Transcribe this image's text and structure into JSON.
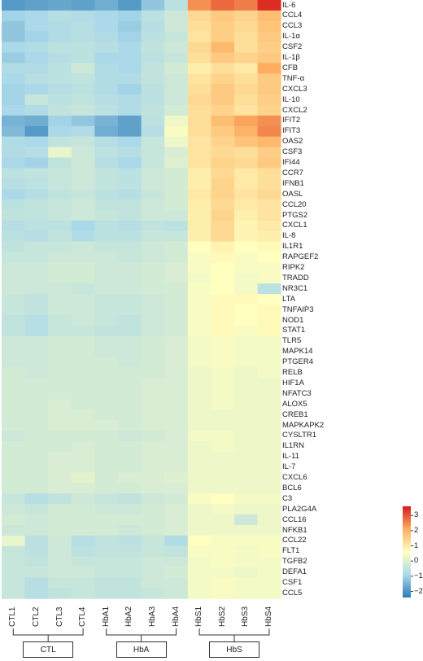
{
  "chart_data": {
    "type": "heatmap",
    "title": "",
    "samples": [
      "CTL1",
      "CTL2",
      "CTL3",
      "CTL4",
      "HbA1",
      "HbA2",
      "HbA3",
      "HbA4",
      "HbS1",
      "HbS2",
      "HbS3",
      "HbS4"
    ],
    "groups": [
      {
        "label": "CTL",
        "members": [
          "CTL1",
          "CTL2",
          "CTL3",
          "CTL4"
        ]
      },
      {
        "label": "HbA",
        "members": [
          "HbA1",
          "HbA2",
          "HbA3",
          "HbA4"
        ]
      },
      {
        "label": "HbS",
        "members": [
          "HbS1",
          "HbS2",
          "HbS3",
          "HbS4"
        ]
      }
    ],
    "genes": [
      "IL-6",
      "CCL4",
      "CCL3",
      "IL-1α",
      "CSF2",
      "IL-1β",
      "CFB",
      "TNF-α",
      "CXCL3",
      "IL-10",
      "CXCL2",
      "IFIT2",
      "IFIT3",
      "OAS2",
      "CSF3",
      "IFI44",
      "CCR7",
      "IFNB1",
      "OASL",
      "CCL20",
      "PTGS2",
      "CXCL1",
      "IL-8",
      "IL1R1",
      "RAPGEF2",
      "RIPK2",
      "TRADD",
      "NR3C1",
      "LTA",
      "TNFAIP3",
      "NOD1",
      "STAT1",
      "TLR5",
      "MAPK14",
      "PTGER4",
      "RELB",
      "HIF1A",
      "NFATC3",
      "ALOX5",
      "CREB1",
      "MAPKAPK2",
      "CYSLTR1",
      "IL1RN",
      "IL-11",
      "IL-7",
      "CXCL6",
      "BCL6",
      "C3",
      "PLA2G4A",
      "CCL16",
      "NFKB1",
      "CCL22",
      "FLT1",
      "TGFB2",
      "DEFA1",
      "CSF1",
      "CCL5"
    ],
    "values": [
      [
        -1.9,
        -1.8,
        -1.7,
        -1.8,
        -1.6,
        -1.9,
        -1.2,
        -0.6,
        2.4,
        2.8,
        2.6,
        3.4
      ],
      [
        -1.0,
        -0.9,
        -0.7,
        -0.8,
        -0.9,
        -1.0,
        -0.6,
        -0.3,
        1.3,
        1.6,
        1.4,
        1.8
      ],
      [
        -1.2,
        -0.9,
        -0.8,
        -0.7,
        -0.9,
        -1.1,
        -0.7,
        -0.3,
        1.2,
        1.5,
        1.3,
        1.7
      ],
      [
        -1.2,
        -1.0,
        -0.8,
        -0.7,
        -0.8,
        -1.0,
        -0.6,
        -0.4,
        1.1,
        1.5,
        1.2,
        1.6
      ],
      [
        -0.9,
        -0.8,
        -0.6,
        -0.6,
        -0.7,
        -0.9,
        -0.5,
        -0.3,
        1.3,
        1.9,
        1.2,
        1.5
      ],
      [
        -1.1,
        -0.9,
        -0.7,
        -0.6,
        -0.9,
        -0.9,
        -0.6,
        -0.4,
        1.2,
        1.6,
        1.4,
        1.6
      ],
      [
        -0.8,
        -0.8,
        -0.6,
        -0.3,
        -0.8,
        -0.9,
        -0.5,
        -0.2,
        0.9,
        1.2,
        1.0,
        2.1
      ],
      [
        -0.9,
        -0.7,
        -0.6,
        -0.5,
        -0.8,
        -0.8,
        -0.5,
        -0.3,
        1.1,
        1.4,
        1.2,
        1.6
      ],
      [
        -1.0,
        -0.9,
        -0.7,
        -0.6,
        -0.8,
        -1.0,
        -0.6,
        -0.3,
        1.2,
        1.6,
        1.3,
        1.6
      ],
      [
        -1.0,
        -0.4,
        -0.6,
        -0.5,
        -0.7,
        -0.8,
        -0.6,
        -0.3,
        1.3,
        1.6,
        1.2,
        1.5
      ],
      [
        -0.9,
        -0.8,
        -0.5,
        -0.4,
        -0.6,
        -0.8,
        -0.5,
        -0.2,
        1.2,
        1.4,
        1.1,
        1.4
      ],
      [
        -1.5,
        -1.6,
        -1.0,
        -1.2,
        -1.5,
        -1.8,
        -0.6,
        0.3,
        1.2,
        1.8,
        2.2,
        2.4
      ],
      [
        -1.4,
        -1.9,
        -0.9,
        -0.8,
        -1.6,
        -1.8,
        -0.7,
        0.5,
        1.2,
        1.6,
        2.0,
        2.5
      ],
      [
        -0.8,
        -0.9,
        -0.5,
        -0.4,
        -0.7,
        -0.9,
        -0.4,
        0.3,
        1.1,
        1.4,
        1.7,
        1.9
      ],
      [
        -0.8,
        -0.7,
        0.2,
        -0.3,
        -0.6,
        -0.7,
        -0.4,
        -0.1,
        1.1,
        1.3,
        1.2,
        1.5
      ],
      [
        -0.9,
        -1.0,
        -0.5,
        -0.3,
        -0.7,
        -0.9,
        -0.4,
        0.0,
        1.1,
        1.4,
        1.3,
        1.6
      ],
      [
        -0.6,
        -0.5,
        -0.4,
        -0.3,
        -0.5,
        -0.6,
        -0.3,
        -0.2,
        0.9,
        1.3,
        1.0,
        1.2
      ],
      [
        -0.7,
        -0.6,
        -0.4,
        -0.3,
        -0.5,
        -0.6,
        -0.3,
        -0.2,
        0.9,
        1.4,
        1.0,
        1.2
      ],
      [
        -0.9,
        -0.7,
        -0.5,
        -0.4,
        -0.6,
        -0.7,
        -0.4,
        -0.2,
        1.0,
        1.4,
        1.1,
        1.3
      ],
      [
        -0.6,
        -0.5,
        -0.4,
        -0.3,
        -0.5,
        -0.5,
        -0.3,
        -0.2,
        0.9,
        1.3,
        1.0,
        1.1
      ],
      [
        -0.5,
        -0.5,
        -0.4,
        -0.3,
        -0.4,
        -0.5,
        -0.3,
        -0.3,
        0.9,
        1.4,
        0.9,
        1.1
      ],
      [
        -0.7,
        -0.6,
        -0.6,
        -0.9,
        -0.6,
        -0.7,
        -0.5,
        -0.6,
        0.9,
        1.3,
        0.8,
        1.0
      ],
      [
        -0.6,
        -0.7,
        -0.5,
        -0.8,
        -0.6,
        -0.6,
        -0.4,
        -0.4,
        0.9,
        1.3,
        0.8,
        0.9
      ],
      [
        -0.5,
        -0.4,
        -0.4,
        -0.3,
        -0.4,
        -0.4,
        -0.3,
        -0.2,
        0.6,
        0.8,
        0.6,
        0.7
      ],
      [
        -0.4,
        -0.4,
        -0.3,
        -0.3,
        -0.3,
        -0.4,
        -0.3,
        -0.2,
        0.5,
        0.7,
        0.5,
        0.6
      ],
      [
        -0.3,
        -0.3,
        -0.2,
        -0.2,
        -0.3,
        -0.3,
        -0.2,
        -0.1,
        0.5,
        0.6,
        0.5,
        0.5
      ],
      [
        -0.3,
        -0.3,
        -0.2,
        -0.2,
        -0.3,
        -0.3,
        -0.2,
        -0.1,
        0.4,
        0.6,
        0.4,
        0.5
      ],
      [
        -0.3,
        -0.3,
        -0.3,
        -0.4,
        -0.3,
        -0.3,
        -0.2,
        -0.2,
        0.5,
        0.6,
        0.4,
        -0.6
      ],
      [
        -0.4,
        -0.5,
        -0.3,
        -0.3,
        -0.4,
        -0.4,
        -0.3,
        -0.2,
        0.5,
        0.7,
        0.7,
        0.6
      ],
      [
        -0.4,
        -0.5,
        -0.3,
        -0.3,
        -0.4,
        -0.4,
        -0.3,
        -0.2,
        0.5,
        0.7,
        0.6,
        0.7
      ],
      [
        -0.5,
        -0.7,
        -0.4,
        -0.3,
        -0.4,
        -0.5,
        -0.3,
        -0.2,
        0.5,
        0.7,
        0.6,
        0.7
      ],
      [
        -0.5,
        -0.7,
        -0.4,
        -0.4,
        -0.5,
        -0.5,
        -0.3,
        -0.2,
        0.5,
        0.7,
        0.5,
        0.7
      ],
      [
        -0.3,
        -0.3,
        -0.2,
        -0.2,
        -0.3,
        -0.3,
        -0.2,
        -0.1,
        0.4,
        0.5,
        0.4,
        0.4
      ],
      [
        -0.3,
        -0.3,
        -0.2,
        -0.2,
        -0.3,
        -0.3,
        -0.2,
        -0.1,
        0.4,
        0.5,
        0.4,
        0.4
      ],
      [
        -0.3,
        -0.3,
        -0.2,
        -0.2,
        -0.2,
        -0.3,
        -0.2,
        -0.1,
        0.4,
        0.5,
        0.4,
        0.4
      ],
      [
        -0.2,
        -0.3,
        -0.2,
        -0.2,
        -0.2,
        -0.2,
        -0.2,
        -0.1,
        0.3,
        0.4,
        0.3,
        0.4
      ],
      [
        -0.2,
        -0.2,
        -0.2,
        -0.2,
        -0.2,
        -0.2,
        -0.1,
        -0.1,
        0.3,
        0.4,
        0.3,
        0.3
      ],
      [
        -0.2,
        -0.2,
        -0.2,
        -0.2,
        -0.2,
        -0.2,
        -0.1,
        -0.1,
        0.3,
        0.4,
        0.3,
        0.3
      ],
      [
        -0.2,
        -0.2,
        -0.1,
        -0.2,
        -0.2,
        -0.2,
        -0.1,
        -0.1,
        0.3,
        0.4,
        0.3,
        0.3
      ],
      [
        -0.2,
        -0.2,
        -0.1,
        -0.1,
        -0.2,
        -0.2,
        -0.1,
        -0.1,
        0.3,
        0.3,
        0.3,
        0.3
      ],
      [
        -0.2,
        -0.2,
        -0.1,
        -0.1,
        -0.1,
        -0.2,
        -0.1,
        -0.1,
        0.3,
        0.3,
        0.3,
        0.3
      ],
      [
        -0.3,
        -0.2,
        -0.2,
        -0.2,
        -0.2,
        -0.3,
        -0.2,
        -0.1,
        0.4,
        0.4,
        0.3,
        0.3
      ],
      [
        -0.2,
        -0.2,
        -0.2,
        -0.1,
        -0.2,
        -0.2,
        -0.1,
        -0.1,
        0.3,
        0.4,
        0.3,
        0.3
      ],
      [
        -0.2,
        -0.2,
        -0.1,
        -0.1,
        -0.2,
        -0.2,
        -0.1,
        -0.1,
        0.3,
        0.3,
        0.3,
        0.3
      ],
      [
        -0.2,
        -0.2,
        -0.1,
        -0.1,
        -0.2,
        -0.2,
        -0.1,
        -0.1,
        0.3,
        0.3,
        0.3,
        0.3
      ],
      [
        -0.2,
        -0.2,
        -0.1,
        0.1,
        -0.2,
        -0.1,
        -0.1,
        0.0,
        0.3,
        0.3,
        0.3,
        0.3
      ],
      [
        -0.2,
        -0.2,
        -0.1,
        -0.1,
        -0.2,
        -0.2,
        -0.1,
        -0.1,
        0.3,
        0.3,
        0.3,
        0.3
      ],
      [
        -0.4,
        -0.7,
        -0.5,
        -0.3,
        -0.4,
        -0.5,
        -0.3,
        -0.2,
        0.5,
        0.6,
        0.4,
        0.4
      ],
      [
        -0.3,
        -0.4,
        -0.2,
        -0.2,
        -0.3,
        -0.3,
        -0.2,
        -0.1,
        0.3,
        0.4,
        0.3,
        0.3
      ],
      [
        -0.2,
        -0.3,
        -0.2,
        -0.2,
        -0.2,
        -0.2,
        -0.2,
        -0.1,
        0.3,
        0.3,
        -0.3,
        0.3
      ],
      [
        -0.3,
        -0.3,
        -0.2,
        -0.2,
        -0.2,
        -0.3,
        -0.2,
        -0.1,
        0.3,
        0.3,
        0.3,
        0.3
      ],
      [
        0.2,
        -0.6,
        -0.3,
        -0.7,
        -0.5,
        -0.6,
        -0.4,
        -0.8,
        0.6,
        0.5,
        0.5,
        0.5
      ],
      [
        -0.4,
        -0.6,
        -0.3,
        -0.6,
        -0.5,
        -0.5,
        -0.4,
        -0.5,
        0.5,
        0.5,
        0.4,
        0.5
      ],
      [
        -0.4,
        -0.5,
        -0.3,
        -0.4,
        -0.4,
        -0.4,
        -0.3,
        -0.3,
        0.4,
        0.5,
        0.4,
        0.4
      ],
      [
        -0.4,
        -0.4,
        -0.3,
        -0.3,
        -0.4,
        -0.4,
        -0.3,
        -0.2,
        0.4,
        0.4,
        0.3,
        0.4
      ],
      [
        -0.4,
        -0.7,
        -0.4,
        -0.4,
        -0.5,
        -0.5,
        -0.3,
        -0.3,
        0.4,
        0.5,
        0.4,
        0.4
      ],
      [
        -0.4,
        -0.7,
        -0.5,
        -0.4,
        -0.5,
        -0.5,
        -0.4,
        -0.3,
        0.4,
        0.5,
        0.4,
        0.4
      ]
    ],
    "colorbar": {
      "min": -2.4,
      "max": 3.6,
      "ticks": [
        3,
        2,
        1,
        0,
        -1,
        -2
      ],
      "tick_labels": [
        "3",
        "2",
        "1",
        "0",
        "−1",
        "−2"
      ],
      "colors": [
        "#2c7bb6",
        "#abd9e9",
        "#ffffbf",
        "#fdae61",
        "#d7191c"
      ]
    }
  }
}
